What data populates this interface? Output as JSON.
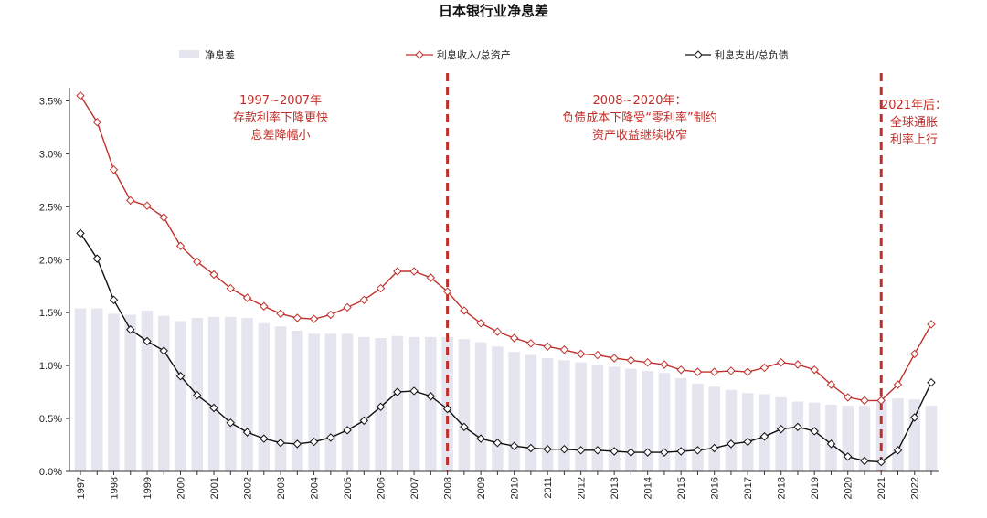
{
  "chart_data": {
    "type": "bar+line",
    "title": "日本银行业净息差",
    "xlabel": "",
    "ylabel": "",
    "ylim": [
      0,
      0.035
    ],
    "yticks": [
      "0.0%",
      "0.5%",
      "1.0%",
      "1.5%",
      "2.0%",
      "2.5%",
      "3.0%",
      "3.5%"
    ],
    "xtick_labels": [
      "1997",
      "1998",
      "1999",
      "2000",
      "2001",
      "2002",
      "2003",
      "2004",
      "2005",
      "2006",
      "2007",
      "2008",
      "2009",
      "2010",
      "2011",
      "2012",
      "2013",
      "2014",
      "2015",
      "2016",
      "2017",
      "2018",
      "2019",
      "2020",
      "2021",
      "2022"
    ],
    "legend": {
      "bars_label": "净息差",
      "asset_label": "利息收入/总资产",
      "liab_label": "利息支出/总负债"
    },
    "colors": {
      "bars": "#e4e5ee",
      "asset_line": "#c0302b",
      "liab_line": "#111111",
      "annotation": "#c0302b",
      "divider": "#c0302b"
    },
    "x": [
      1997.0,
      1997.5,
      1998.0,
      1998.5,
      1999.0,
      1999.5,
      2000.0,
      2000.5,
      2001.0,
      2001.5,
      2002.0,
      2002.5,
      2003.0,
      2003.5,
      2004.0,
      2004.5,
      2005.0,
      2005.5,
      2006.0,
      2006.5,
      2007.0,
      2007.5,
      2008.0,
      2008.5,
      2009.0,
      2009.5,
      2010.0,
      2010.5,
      2011.0,
      2011.5,
      2012.0,
      2012.5,
      2013.0,
      2013.5,
      2014.0,
      2014.5,
      2015.0,
      2015.5,
      2016.0,
      2016.5,
      2017.0,
      2017.5,
      2018.0,
      2018.5,
      2019.0,
      2019.5,
      2020.0,
      2020.5,
      2021.0,
      2021.5,
      2022.0,
      2022.5
    ],
    "series": [
      {
        "name": "净息差",
        "kind": "bar",
        "values": [
          1.54,
          1.54,
          1.49,
          1.48,
          1.52,
          1.47,
          1.42,
          1.45,
          1.46,
          1.46,
          1.45,
          1.4,
          1.37,
          1.33,
          1.3,
          1.3,
          1.3,
          1.27,
          1.26,
          1.28,
          1.27,
          1.27,
          1.27,
          1.25,
          1.22,
          1.18,
          1.13,
          1.1,
          1.07,
          1.05,
          1.03,
          1.01,
          0.99,
          0.97,
          0.95,
          0.93,
          0.88,
          0.83,
          0.8,
          0.77,
          0.74,
          0.73,
          0.7,
          0.66,
          0.65,
          0.63,
          0.62,
          0.62,
          0.66,
          0.69,
          0.68,
          0.62
        ]
      },
      {
        "name": "利息收入/总资产",
        "kind": "line",
        "values": [
          3.55,
          3.3,
          2.85,
          2.56,
          2.51,
          2.4,
          2.13,
          1.98,
          1.86,
          1.73,
          1.64,
          1.56,
          1.49,
          1.45,
          1.44,
          1.48,
          1.55,
          1.62,
          1.73,
          1.89,
          1.89,
          1.83,
          1.7,
          1.52,
          1.4,
          1.32,
          1.26,
          1.21,
          1.18,
          1.15,
          1.11,
          1.1,
          1.07,
          1.05,
          1.03,
          1.01,
          0.96,
          0.94,
          0.94,
          0.95,
          0.94,
          0.98,
          1.03,
          1.01,
          0.96,
          0.82,
          0.7,
          0.67,
          0.67,
          0.82,
          1.11,
          1.39
        ]
      },
      {
        "name": "利息支出/总负债",
        "kind": "line",
        "values": [
          2.25,
          2.01,
          1.62,
          1.34,
          1.23,
          1.14,
          0.9,
          0.72,
          0.6,
          0.46,
          0.37,
          0.31,
          0.27,
          0.26,
          0.28,
          0.32,
          0.39,
          0.48,
          0.61,
          0.75,
          0.76,
          0.71,
          0.59,
          0.42,
          0.31,
          0.27,
          0.24,
          0.22,
          0.21,
          0.21,
          0.2,
          0.2,
          0.19,
          0.18,
          0.18,
          0.18,
          0.19,
          0.2,
          0.22,
          0.26,
          0.28,
          0.33,
          0.4,
          0.42,
          0.38,
          0.26,
          0.14,
          0.1,
          0.09,
          0.2,
          0.51,
          0.84
        ]
      }
    ],
    "dividers": [
      2008.0,
      2021.0
    ],
    "annotations": [
      {
        "lines": [
          "1997~2007年",
          "存款利率下降更快",
          "息差降幅小"
        ]
      },
      {
        "lines": [
          "2008~2020年：",
          "负债成本下降受“零利率”制约",
          "资产收益继续收窄"
        ]
      },
      {
        "lines": [
          "2021年后：",
          "全球通胀",
          "利率上行"
        ]
      }
    ]
  }
}
